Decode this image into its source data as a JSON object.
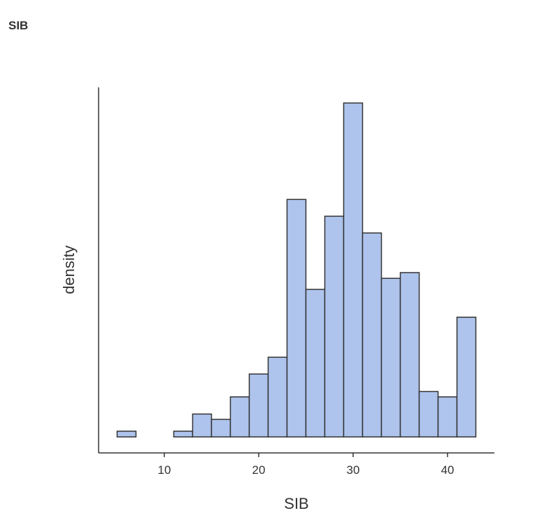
{
  "chart_data": {
    "type": "histogram",
    "title": "SIB",
    "x_label": "SIB",
    "y_label": "density",
    "bins": [
      5,
      7,
      9,
      11,
      13,
      15,
      17,
      19,
      21,
      23,
      25,
      27,
      29,
      31,
      33,
      35,
      37,
      39,
      41,
      43
    ],
    "values": [
      0.0015,
      0,
      0,
      0.0015,
      0.006,
      0.0046,
      0.0105,
      0.0165,
      0.0209,
      0.0623,
      0.0387,
      0.0579,
      0.0876,
      0.0535,
      0.0416,
      0.0431,
      0.0119,
      0.0105,
      0.0314
    ],
    "color": "#aec4ed",
    "edge_color": "#333333",
    "xlim": [
      3.04,
      44.96
    ],
    "xticks": [
      10,
      20,
      30,
      40
    ],
    "ylim": [
      -0.0042,
      0.0917
    ]
  }
}
